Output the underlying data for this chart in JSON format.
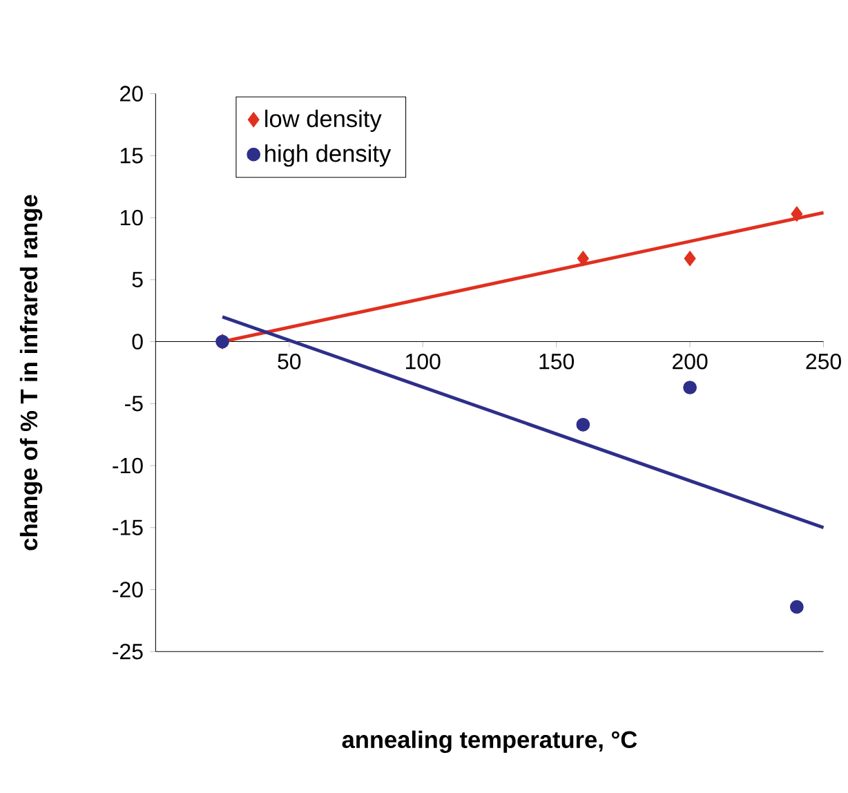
{
  "chart_data": {
    "type": "scatter",
    "xlabel": "annealing temperature, °C",
    "ylabel": "change of % T in infrared range",
    "xlim": [
      0,
      250
    ],
    "ylim": [
      -25,
      20
    ],
    "xticks": [
      50,
      100,
      150,
      200,
      250
    ],
    "yticks": [
      -25,
      -20,
      -15,
      -10,
      -5,
      0,
      5,
      10,
      15,
      20
    ],
    "legend": "top left",
    "series": [
      {
        "name": "low density",
        "marker": "diamond",
        "color": "#e03020",
        "x": [
          25,
          160,
          200,
          240
        ],
        "values": [
          0,
          6.7,
          6.7,
          10.3
        ]
      },
      {
        "name": "high density",
        "marker": "circle",
        "color": "#2e2f8a",
        "x": [
          25,
          160,
          200,
          240
        ],
        "values": [
          0,
          -6.7,
          -3.7,
          -21.4
        ]
      },
      {
        "type": "line",
        "marker": "none",
        "color": "#e03020",
        "x": [
          25,
          250
        ],
        "values": [
          0,
          10.4
        ]
      },
      {
        "type": "line",
        "marker": "none",
        "color": "#2e2f8a",
        "x": [
          25,
          250
        ],
        "values": [
          2,
          -15
        ]
      }
    ]
  }
}
